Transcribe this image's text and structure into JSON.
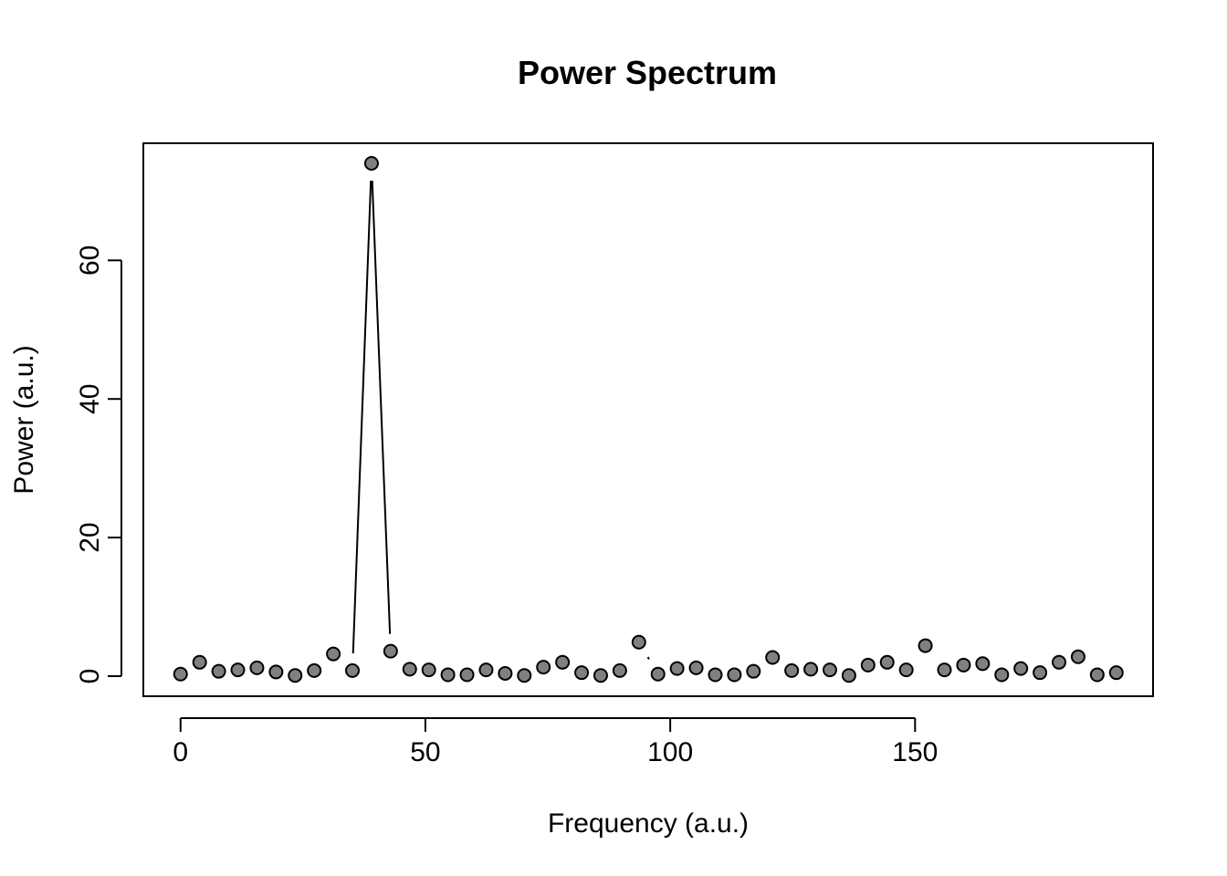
{
  "chart_data": {
    "type": "line",
    "title": "Power Spectrum",
    "xlabel": "Frequency (a.u.)",
    "ylabel": "Power (a.u.)",
    "xlim": [
      -7.6,
      198.6
    ],
    "ylim": [
      -2.9,
      76.9
    ],
    "xticks": [
      0,
      50,
      100,
      150
    ],
    "yticks": [
      0,
      20,
      40,
      60
    ],
    "grid": false,
    "legend": "none",
    "series": [
      {
        "name": "Power",
        "plot_style": "both",
        "x": [
          0,
          3.9,
          7.8,
          11.7,
          15.6,
          19.5,
          23.4,
          27.3,
          31.2,
          35.1,
          39.0,
          42.9,
          46.8,
          50.7,
          54.6,
          58.5,
          62.4,
          66.3,
          70.2,
          74.1,
          78.0,
          81.9,
          85.8,
          89.7,
          93.6,
          97.5,
          101.4,
          105.3,
          109.2,
          113.1,
          117.0,
          120.9,
          124.8,
          128.7,
          132.6,
          136.5,
          140.4,
          144.3,
          148.2,
          152.1,
          156.0,
          159.9,
          163.8,
          167.7,
          171.6,
          175.5,
          179.4,
          183.3,
          187.2,
          191.1
        ],
        "y": [
          0.3,
          2.0,
          0.7,
          0.9,
          1.2,
          0.6,
          0.1,
          0.8,
          3.2,
          0.8,
          74.0,
          3.6,
          1.0,
          0.9,
          0.2,
          0.2,
          0.9,
          0.4,
          0.1,
          1.3,
          2.0,
          0.5,
          0.1,
          0.8,
          4.9,
          0.3,
          1.1,
          1.2,
          0.2,
          0.2,
          0.7,
          2.7,
          0.8,
          1.0,
          0.9,
          0.1,
          1.6,
          2.0,
          0.9,
          4.4,
          0.9,
          1.6,
          1.8,
          0.2,
          1.1,
          0.5,
          2.0,
          2.8,
          0.2,
          0.5
        ]
      }
    ]
  }
}
